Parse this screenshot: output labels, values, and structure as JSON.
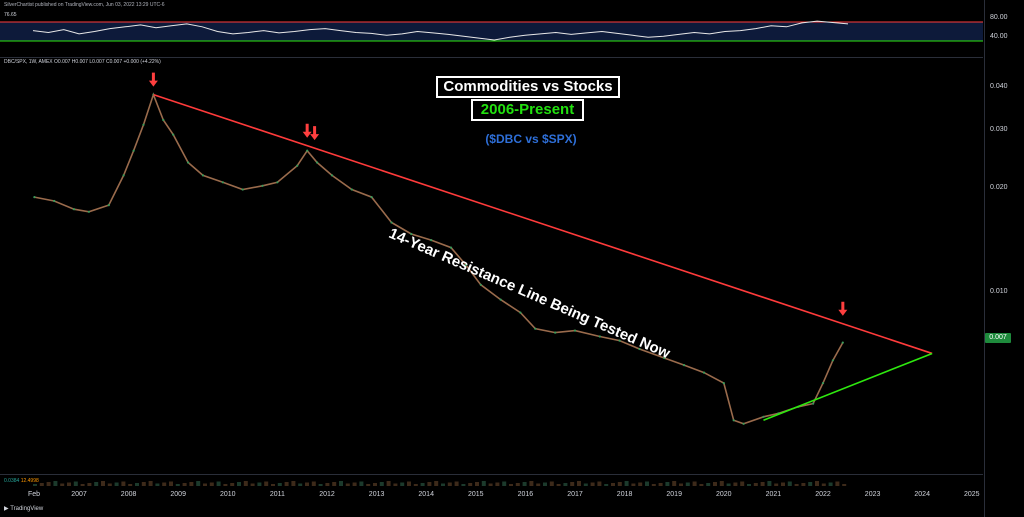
{
  "header": {
    "published": "SilverChartist published on TradingView.com, Jun 03, 2022 13:29 UTC-6"
  },
  "rsi": {
    "current": "76.65",
    "upper": "80.00",
    "lower": "40.00"
  },
  "symbol_line": "DBC/SPX, 1W, AMEX  O0.007  H0.007  L0.007  C0.007  +0.000 (+4.22%)",
  "volume_label": {
    "v1": "0.0384",
    "v2": "12.4998"
  },
  "price_tag": "0.007",
  "branding": "TradingView",
  "colors": {
    "resistance": "#ff3b3b",
    "support": "#2ee80f",
    "arrow": "#ff3f3f",
    "title_green": "#22e10f",
    "tickers_blue": "#2e6fd8"
  },
  "chart_data": {
    "type": "line",
    "title": "Commodities vs Stocks",
    "subtitle": "2006-Present",
    "tickers": "($DBC vs $SPX)",
    "annotation": "14-Year Resistance Line Being Tested Now",
    "y_scale": "log",
    "yticks": [
      "0.040",
      "0.030",
      "0.020",
      "0.010"
    ],
    "ytick_values": [
      0.04,
      0.03,
      0.02,
      0.01
    ],
    "xticks": [
      "Feb",
      "2007",
      "2008",
      "2009",
      "2010",
      "2011",
      "2012",
      "2013",
      "2014",
      "2015",
      "2016",
      "2017",
      "2018",
      "2019",
      "2020",
      "2021",
      "2022",
      "2023",
      "2024",
      "2025"
    ],
    "series": [
      {
        "values": [
          [
            2006.1,
            0.019
          ],
          [
            2006.5,
            0.0185
          ],
          [
            2006.9,
            0.0175
          ],
          [
            2007.2,
            0.0172
          ],
          [
            2007.6,
            0.018
          ],
          [
            2007.9,
            0.022
          ],
          [
            2008.1,
            0.026
          ],
          [
            2008.3,
            0.031
          ],
          [
            2008.5,
            0.038
          ],
          [
            2008.7,
            0.032
          ],
          [
            2008.9,
            0.029
          ],
          [
            2009.2,
            0.024
          ],
          [
            2009.5,
            0.022
          ],
          [
            2009.9,
            0.021
          ],
          [
            2010.3,
            0.02
          ],
          [
            2010.7,
            0.0205
          ],
          [
            2011.0,
            0.021
          ],
          [
            2011.4,
            0.0235
          ],
          [
            2011.6,
            0.026
          ],
          [
            2011.8,
            0.024
          ],
          [
            2012.1,
            0.022
          ],
          [
            2012.5,
            0.02
          ],
          [
            2012.9,
            0.019
          ],
          [
            2013.3,
            0.016
          ],
          [
            2013.7,
            0.0148
          ],
          [
            2014.1,
            0.0142
          ],
          [
            2014.5,
            0.0135
          ],
          [
            2014.8,
            0.012
          ],
          [
            2015.1,
            0.0105
          ],
          [
            2015.5,
            0.0095
          ],
          [
            2015.9,
            0.0087
          ],
          [
            2016.2,
            0.0078
          ],
          [
            2016.6,
            0.0076
          ],
          [
            2017.0,
            0.0077
          ],
          [
            2017.5,
            0.0074
          ],
          [
            2017.9,
            0.0072
          ],
          [
            2018.3,
            0.0068
          ],
          [
            2018.8,
            0.0064
          ],
          [
            2019.2,
            0.0061
          ],
          [
            2019.6,
            0.0058
          ],
          [
            2020.0,
            0.0054
          ],
          [
            2020.2,
            0.0042
          ],
          [
            2020.4,
            0.0041
          ],
          [
            2020.8,
            0.0043
          ],
          [
            2021.1,
            0.0044
          ],
          [
            2021.5,
            0.0046
          ],
          [
            2021.8,
            0.0047
          ],
          [
            2022.0,
            0.0054
          ],
          [
            2022.2,
            0.0063
          ],
          [
            2022.4,
            0.0071
          ]
        ]
      }
    ],
    "resistance_line": {
      "from": [
        2008.5,
        0.038
      ],
      "to": [
        2024.2,
        0.0066
      ]
    },
    "support_line": {
      "from": [
        2020.8,
        0.0042
      ],
      "to": [
        2024.2,
        0.0066
      ]
    },
    "markers": [
      2008.5,
      2011.6,
      2011.75,
      2022.4
    ],
    "rsi_values": [
      62,
      58,
      64,
      55,
      60,
      66,
      70,
      74,
      68,
      72,
      76,
      70,
      60,
      55,
      58,
      62,
      57,
      60,
      64,
      66,
      62,
      58,
      56,
      52,
      55,
      60,
      57,
      54,
      50,
      46,
      42,
      48,
      52,
      55,
      58,
      54,
      57,
      60,
      56,
      52,
      48,
      50,
      54,
      58,
      55,
      60,
      62,
      66,
      72,
      70,
      78,
      82,
      79,
      76
    ],
    "grid": false,
    "legend": "none"
  }
}
